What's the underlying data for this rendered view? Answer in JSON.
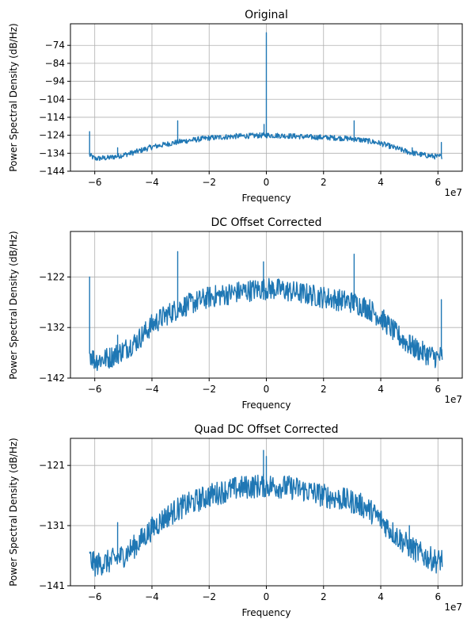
{
  "colors": {
    "series": "#1f77b4",
    "grid": "#b0b0b0",
    "axes": "#000000",
    "background": "#ffffff"
  },
  "chart_data": [
    {
      "type": "line",
      "title": "Original",
      "xlabel": "Frequency",
      "ylabel": "Power Spectral Density (dB/Hz)",
      "x_exponent_label": "1e7",
      "x_unit_scale": 10000000,
      "xlim": [
        -6.85,
        6.85
      ],
      "ylim": [
        -144,
        -62
      ],
      "grid": true,
      "xticks": [
        -6,
        -4,
        -2,
        0,
        2,
        4,
        6
      ],
      "xtick_labels": [
        "−6",
        "−4",
        "−2",
        "0",
        "2",
        "4",
        "6"
      ],
      "yticks": [
        -74,
        -84,
        -94,
        -104,
        -114,
        -124,
        -134,
        -144
      ],
      "ytick_labels": [
        "−74",
        "−84",
        "−94",
        "−104",
        "−114",
        "−124",
        "−134",
        "−144"
      ],
      "series": [
        {
          "x": [
            -6.18,
            -6.0,
            -5.5,
            -5.0,
            -4.5,
            -4.0,
            -3.5,
            -3.0,
            -2.5,
            -2.0,
            -1.5,
            -1.0,
            -0.5,
            0.0,
            0.5,
            1.0,
            1.5,
            2.0,
            2.5,
            3.0,
            3.5,
            4.0,
            4.5,
            5.0,
            5.5,
            6.0,
            6.15
          ],
          "y": [
            -135,
            -137,
            -136.5,
            -135,
            -133,
            -130.5,
            -129,
            -127.5,
            -126.5,
            -125.5,
            -125,
            -124.5,
            -124.3,
            -124,
            -124.2,
            -124.5,
            -125,
            -125.2,
            -125.5,
            -126,
            -127,
            -128.5,
            -131,
            -133.5,
            -135,
            -136,
            -135.5
          ],
          "noise_band": 1.5,
          "spikes": [
            {
              "x": -6.18,
              "y": -122
            },
            {
              "x": -5.2,
              "y": -131
            },
            {
              "x": -3.1,
              "y": -116
            },
            {
              "x": -0.08,
              "y": -118
            },
            {
              "x": 0.0,
              "y": -67
            },
            {
              "x": 3.07,
              "y": -116
            },
            {
              "x": 5.1,
              "y": -131
            },
            {
              "x": 6.12,
              "y": -128
            }
          ]
        }
      ]
    },
    {
      "type": "line",
      "title": "DC Offset Corrected",
      "xlabel": "Frequency",
      "ylabel": "Power Spectral Density (dB/Hz)",
      "x_exponent_label": "1e7",
      "x_unit_scale": 10000000,
      "xlim": [
        -6.85,
        6.85
      ],
      "ylim": [
        -142,
        -113
      ],
      "grid": true,
      "xticks": [
        -6,
        -4,
        -2,
        0,
        2,
        4,
        6
      ],
      "xtick_labels": [
        "−6",
        "−4",
        "−2",
        "0",
        "2",
        "4",
        "6"
      ],
      "yticks": [
        -122,
        -132,
        -142
      ],
      "ytick_labels": [
        "−122",
        "−132",
        "−142"
      ],
      "series": [
        {
          "x": [
            -6.18,
            -6.0,
            -5.5,
            -5.0,
            -4.5,
            -4.0,
            -3.5,
            -3.0,
            -2.5,
            -2.0,
            -1.5,
            -1.0,
            -0.5,
            0.0,
            0.5,
            1.0,
            1.5,
            2.0,
            2.5,
            3.0,
            3.5,
            4.0,
            4.5,
            5.0,
            5.5,
            6.0,
            6.15
          ],
          "y": [
            -137,
            -138.5,
            -138,
            -136.5,
            -134.5,
            -131.5,
            -129.5,
            -128,
            -127,
            -126,
            -125.5,
            -125,
            -124.6,
            -124.3,
            -124.5,
            -125,
            -125.5,
            -126,
            -126.5,
            -127,
            -128,
            -130,
            -133,
            -135.5,
            -137,
            -138,
            -137.5
          ],
          "noise_band": 2.2,
          "spikes": [
            {
              "x": -6.18,
              "y": -122
            },
            {
              "x": -5.2,
              "y": -133.5
            },
            {
              "x": -3.1,
              "y": -117
            },
            {
              "x": -0.1,
              "y": -119
            },
            {
              "x": 3.07,
              "y": -117.5
            },
            {
              "x": 5.0,
              "y": -133.5
            },
            {
              "x": 6.12,
              "y": -126.5
            }
          ]
        }
      ]
    },
    {
      "type": "line",
      "title": "Quad DC Offset Corrected",
      "xlabel": "Frequency",
      "ylabel": "Power Spectral Density (dB/Hz)",
      "x_exponent_label": "1e7",
      "x_unit_scale": 10000000,
      "xlim": [
        -6.85,
        6.85
      ],
      "ylim": [
        -141,
        -116.5
      ],
      "grid": true,
      "xticks": [
        -6,
        -4,
        -2,
        0,
        2,
        4,
        6
      ],
      "xtick_labels": [
        "−6",
        "−4",
        "−2",
        "0",
        "2",
        "4",
        "6"
      ],
      "yticks": [
        -121,
        -131,
        -141
      ],
      "ytick_labels": [
        "−121",
        "−131",
        "−141"
      ],
      "series": [
        {
          "x": [
            -6.18,
            -6.0,
            -5.5,
            -5.0,
            -4.5,
            -4.0,
            -3.5,
            -3.0,
            -2.5,
            -2.0,
            -1.5,
            -1.0,
            -0.5,
            0.0,
            0.5,
            1.0,
            1.5,
            2.0,
            2.5,
            3.0,
            3.5,
            4.0,
            4.5,
            5.0,
            5.5,
            6.0,
            6.15
          ],
          "y": [
            -136.5,
            -137.5,
            -137,
            -136,
            -134,
            -131.5,
            -129.5,
            -128,
            -127,
            -126,
            -125.3,
            -124.8,
            -124.5,
            -124.3,
            -124.5,
            -124.8,
            -125.3,
            -126,
            -126.5,
            -127,
            -128,
            -130,
            -132.5,
            -134.5,
            -136,
            -137,
            -136.5
          ],
          "noise_band": 2.0,
          "spikes": [
            {
              "x": -5.2,
              "y": -130.5
            },
            {
              "x": -0.1,
              "y": -118.5
            },
            {
              "x": 0.0,
              "y": -119.5
            },
            {
              "x": 5.0,
              "y": -131
            }
          ]
        }
      ]
    }
  ]
}
